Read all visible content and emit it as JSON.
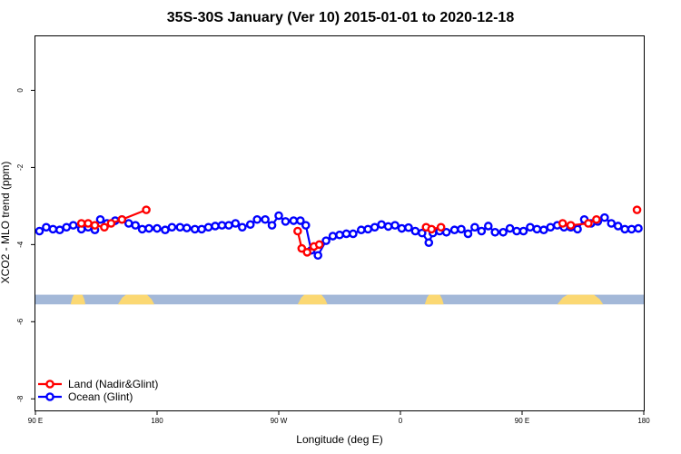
{
  "chart_data": {
    "type": "line",
    "title": "35S-30S January (Ver 10)   2015-01-01 to 2020-12-18",
    "xlabel": "Longitude (deg E)",
    "ylabel": "XCO2 - MLO trend (ppm)",
    "xlim": [
      90,
      540
    ],
    "ylim": [
      -8.3,
      1.4
    ],
    "x_ticks": [
      {
        "value": 90,
        "label": "90 E"
      },
      {
        "value": 180,
        "label": "180"
      },
      {
        "value": 270,
        "label": "90 W"
      },
      {
        "value": 360,
        "label": "0"
      },
      {
        "value": 450,
        "label": "90 E"
      },
      {
        "value": 540,
        "label": "180"
      }
    ],
    "y_ticks": [
      {
        "value": 0,
        "label": "0"
      },
      {
        "value": -2,
        "label": "-2"
      },
      {
        "value": -4,
        "label": "-4"
      },
      {
        "value": -6,
        "label": "-6"
      },
      {
        "value": -8,
        "label": "-8"
      }
    ],
    "land_band": {
      "y_range": [
        -5.55,
        -5.3
      ],
      "ocean_color": "#a3b8d8",
      "land_color": "#fbd873",
      "land_segments": [
        [
          116,
          127
        ],
        [
          151,
          178
        ],
        [
          284,
          306
        ],
        [
          378,
          392
        ],
        [
          476,
          510
        ]
      ]
    },
    "legend": {
      "position": "bottom-left"
    },
    "series": [
      {
        "name": "Land (Nadir&Glint)",
        "color": "#ff0000",
        "segments": [
          [
            [
              124,
              -3.45
            ],
            [
              129,
              -3.45
            ],
            [
              134,
              -3.5
            ],
            [
              141,
              -3.55
            ],
            [
              146,
              -3.45
            ],
            [
              154,
              -3.35
            ],
            [
              172,
              -3.1
            ]
          ],
          [
            [
              284,
              -3.65
            ],
            [
              287,
              -4.1
            ],
            [
              291,
              -4.2
            ],
            [
              296,
              -4.05
            ],
            [
              300,
              -4.0
            ]
          ],
          [
            [
              379,
              -3.55
            ],
            [
              383,
              -3.6
            ],
            [
              390,
              -3.55
            ]
          ],
          [
            [
              480,
              -3.45
            ],
            [
              486,
              -3.5
            ],
            [
              499,
              -3.45
            ],
            [
              505,
              -3.35
            ]
          ],
          [
            [
              535,
              -3.1
            ]
          ]
        ]
      },
      {
        "name": "Ocean (Glint)",
        "color": "#0000ff",
        "segments": [
          [
            [
              93,
              -3.65
            ],
            [
              98,
              -3.55
            ],
            [
              103,
              -3.6
            ],
            [
              108,
              -3.62
            ],
            [
              113,
              -3.55
            ],
            [
              118,
              -3.5
            ],
            [
              124,
              -3.6
            ],
            [
              129,
              -3.55
            ],
            [
              134,
              -3.62
            ],
            [
              138,
              -3.35
            ],
            [
              143,
              -3.45
            ],
            [
              149,
              -3.38
            ],
            [
              154,
              -3.35
            ],
            [
              159,
              -3.45
            ],
            [
              164,
              -3.5
            ],
            [
              169,
              -3.6
            ],
            [
              174,
              -3.58
            ],
            [
              180,
              -3.58
            ],
            [
              186,
              -3.62
            ],
            [
              191,
              -3.55
            ],
            [
              197,
              -3.55
            ],
            [
              202,
              -3.57
            ],
            [
              208,
              -3.6
            ],
            [
              213,
              -3.6
            ],
            [
              218,
              -3.55
            ],
            [
              223,
              -3.52
            ],
            [
              228,
              -3.5
            ],
            [
              233,
              -3.5
            ],
            [
              238,
              -3.45
            ],
            [
              243,
              -3.55
            ],
            [
              249,
              -3.48
            ],
            [
              254,
              -3.35
            ],
            [
              260,
              -3.35
            ],
            [
              265,
              -3.5
            ],
            [
              270,
              -3.25
            ],
            [
              275,
              -3.4
            ],
            [
              281,
              -3.38
            ],
            [
              286,
              -3.38
            ],
            [
              290,
              -3.5
            ],
            [
              294,
              -4.15
            ],
            [
              299,
              -4.28
            ],
            [
              305,
              -3.9
            ],
            [
              310,
              -3.78
            ],
            [
              315,
              -3.75
            ],
            [
              320,
              -3.72
            ],
            [
              325,
              -3.72
            ],
            [
              331,
              -3.62
            ],
            [
              336,
              -3.6
            ],
            [
              341,
              -3.55
            ],
            [
              346,
              -3.48
            ],
            [
              351,
              -3.53
            ],
            [
              356,
              -3.5
            ],
            [
              361,
              -3.58
            ],
            [
              366,
              -3.56
            ],
            [
              371,
              -3.65
            ],
            [
              376,
              -3.7
            ],
            [
              381,
              -3.95
            ],
            [
              384,
              -3.7
            ],
            [
              389,
              -3.65
            ],
            [
              394,
              -3.68
            ],
            [
              400,
              -3.62
            ],
            [
              405,
              -3.6
            ],
            [
              410,
              -3.72
            ],
            [
              415,
              -3.55
            ],
            [
              420,
              -3.65
            ],
            [
              425,
              -3.52
            ],
            [
              430,
              -3.68
            ],
            [
              436,
              -3.68
            ],
            [
              441,
              -3.58
            ],
            [
              446,
              -3.65
            ],
            [
              451,
              -3.65
            ],
            [
              456,
              -3.55
            ],
            [
              461,
              -3.6
            ],
            [
              466,
              -3.62
            ],
            [
              471,
              -3.55
            ],
            [
              476,
              -3.5
            ],
            [
              481,
              -3.55
            ],
            [
              486,
              -3.55
            ],
            [
              491,
              -3.6
            ],
            [
              496,
              -3.35
            ],
            [
              501,
              -3.45
            ],
            [
              506,
              -3.4
            ],
            [
              511,
              -3.3
            ],
            [
              516,
              -3.45
            ],
            [
              521,
              -3.52
            ],
            [
              526,
              -3.6
            ],
            [
              531,
              -3.6
            ],
            [
              536,
              -3.58
            ]
          ]
        ]
      }
    ]
  }
}
